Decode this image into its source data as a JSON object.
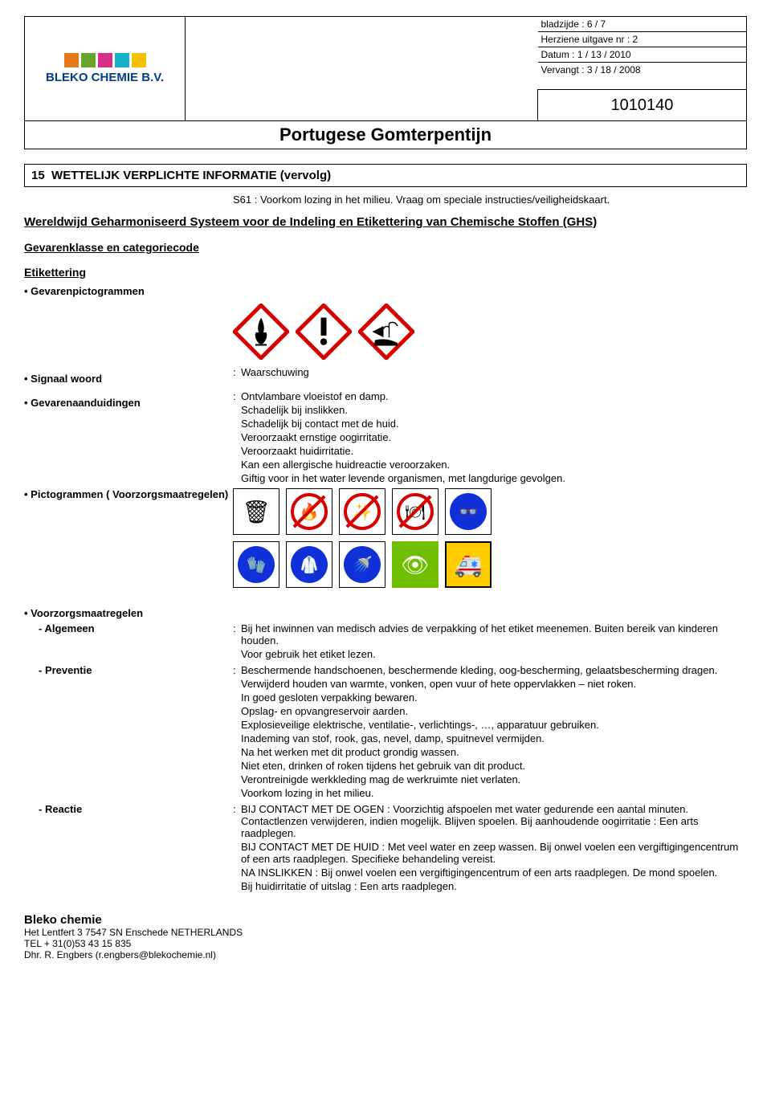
{
  "header": {
    "page": "bladzijde : 6 / 7",
    "revision": "Herziene uitgave nr : 2",
    "date": "Datum : 1 / 13 / 2010",
    "replaces": "Vervangt : 3 / 18 / 2008",
    "title": "Portugese Gomterpentijn",
    "code": "1010140",
    "logo_text": "BLEKO CHEMIE B.V.",
    "logo_colors": [
      "#e67817",
      "#6aa329",
      "#d82f86",
      "#16b1c9",
      "#f2c200"
    ]
  },
  "section": {
    "number": "15",
    "title": "WETTELIJK VERPLICHTE INFORMATIE  (vervolg)",
    "s61": "S61 : Voorkom lozing in het milieu. Vraag om speciale instructies/veiligheidskaart.",
    "ghs_heading": "Wereldwijd Geharmoniseerd Systeem voor de Indeling en Etikettering van Chemische Stoffen (GHS)",
    "gevarenklasse_label": "Gevarenklasse en categoriecode",
    "etikettering_label": "Etikettering",
    "pictogrammen_label": "• Gevarenpictogrammen",
    "ghs_pictograms": [
      "flame",
      "exclamation",
      "environment"
    ],
    "signal": {
      "label": "• Signaal woord",
      "value": "Waarschuwing"
    },
    "hazard": {
      "label": "• Gevarenaanduidingen",
      "lines": [
        "Ontvlambare vloeistof en damp.",
        "Schadelijk bij inslikken.",
        "Schadelijk bij contact met de huid.",
        "Veroorzaakt ernstige oogirritatie.",
        "Veroorzaakt huidirritatie.",
        "Kan een allergische huidreactie veroorzaken.",
        "Giftig voor in het water levende organismen, met langdurige gevolgen."
      ]
    },
    "prec_picto_label": "• Pictogrammen ( Voorzorgsmaatregelen)",
    "prec_icons_row1": [
      {
        "type": "box",
        "icon": "trash",
        "color": "#000"
      },
      {
        "type": "red",
        "icon": "flame"
      },
      {
        "type": "red",
        "icon": "spark"
      },
      {
        "type": "red",
        "icon": "eat"
      },
      {
        "type": "blue",
        "icon": "goggles"
      }
    ],
    "prec_icons_row2": [
      {
        "type": "blue",
        "icon": "gloves"
      },
      {
        "type": "blue",
        "icon": "coat"
      },
      {
        "type": "blue",
        "icon": "wash"
      },
      {
        "type": "green",
        "icon": "eyewash"
      },
      {
        "type": "yellow",
        "icon": "emergency"
      }
    ],
    "precautions_label": "• Voorzorgsmaatregelen",
    "algemeen": {
      "label": "- Algemeen",
      "lines": [
        "Bij het inwinnen van medisch advies de verpakking of het etiket meenemen. Buiten bereik van kinderen houden.",
        "Voor gebruik het etiket lezen."
      ]
    },
    "preventie": {
      "label": "- Preventie",
      "lines": [
        "Beschermende handschoenen, beschermende kleding, oog-bescherming, gelaatsbescherming dragen.",
        "Verwijderd houden van warmte, vonken, open vuur of hete oppervlakken – niet roken.",
        "In goed gesloten verpakking bewaren.",
        "Opslag- en opvangreservoir aarden.",
        "Explosieveilige elektrische, ventilatie-, verlichtings-, …, apparatuur gebruiken.",
        "Inademing van stof, rook, gas, nevel, damp, spuitnevel vermijden.",
        "Na het werken met dit product grondig wassen.",
        "Niet eten, drinken of roken tijdens het gebruik van dit product.",
        "Verontreinigde werkkleding mag de werkruimte niet verlaten.",
        "Voorkom lozing in het milieu."
      ]
    },
    "reactie": {
      "label": "- Reactie",
      "lines": [
        "BIJ CONTACT MET DE OGEN : Voorzichtig afspoelen met water gedurende een aantal minuten. Contactlenzen verwijderen, indien mogelijk. Blijven spoelen. Bij aanhoudende oogirritatie : Een arts raadplegen.",
        "BIJ CONTACT MET DE HUID : Met veel water en zeep wassen. Bij onwel voelen een vergiftigingencentrum of een arts raadplegen. Specifieke behandeling vereist.",
        "NA INSLIKKEN : Bij onwel voelen een vergiftigingencentrum of een arts raadplegen. De mond spoelen.",
        "Bij huidirritatie of uitslag : Een arts raadplegen."
      ]
    }
  },
  "footer": {
    "company": "Bleko chemie",
    "address": "Het Lentfert   3  7547 SN  Enschede  NETHERLANDS",
    "tel": "TEL + 31(0)53 43 15 835",
    "contact": "Dhr. R. Engbers (r.engbers@blekochemie.nl)"
  }
}
